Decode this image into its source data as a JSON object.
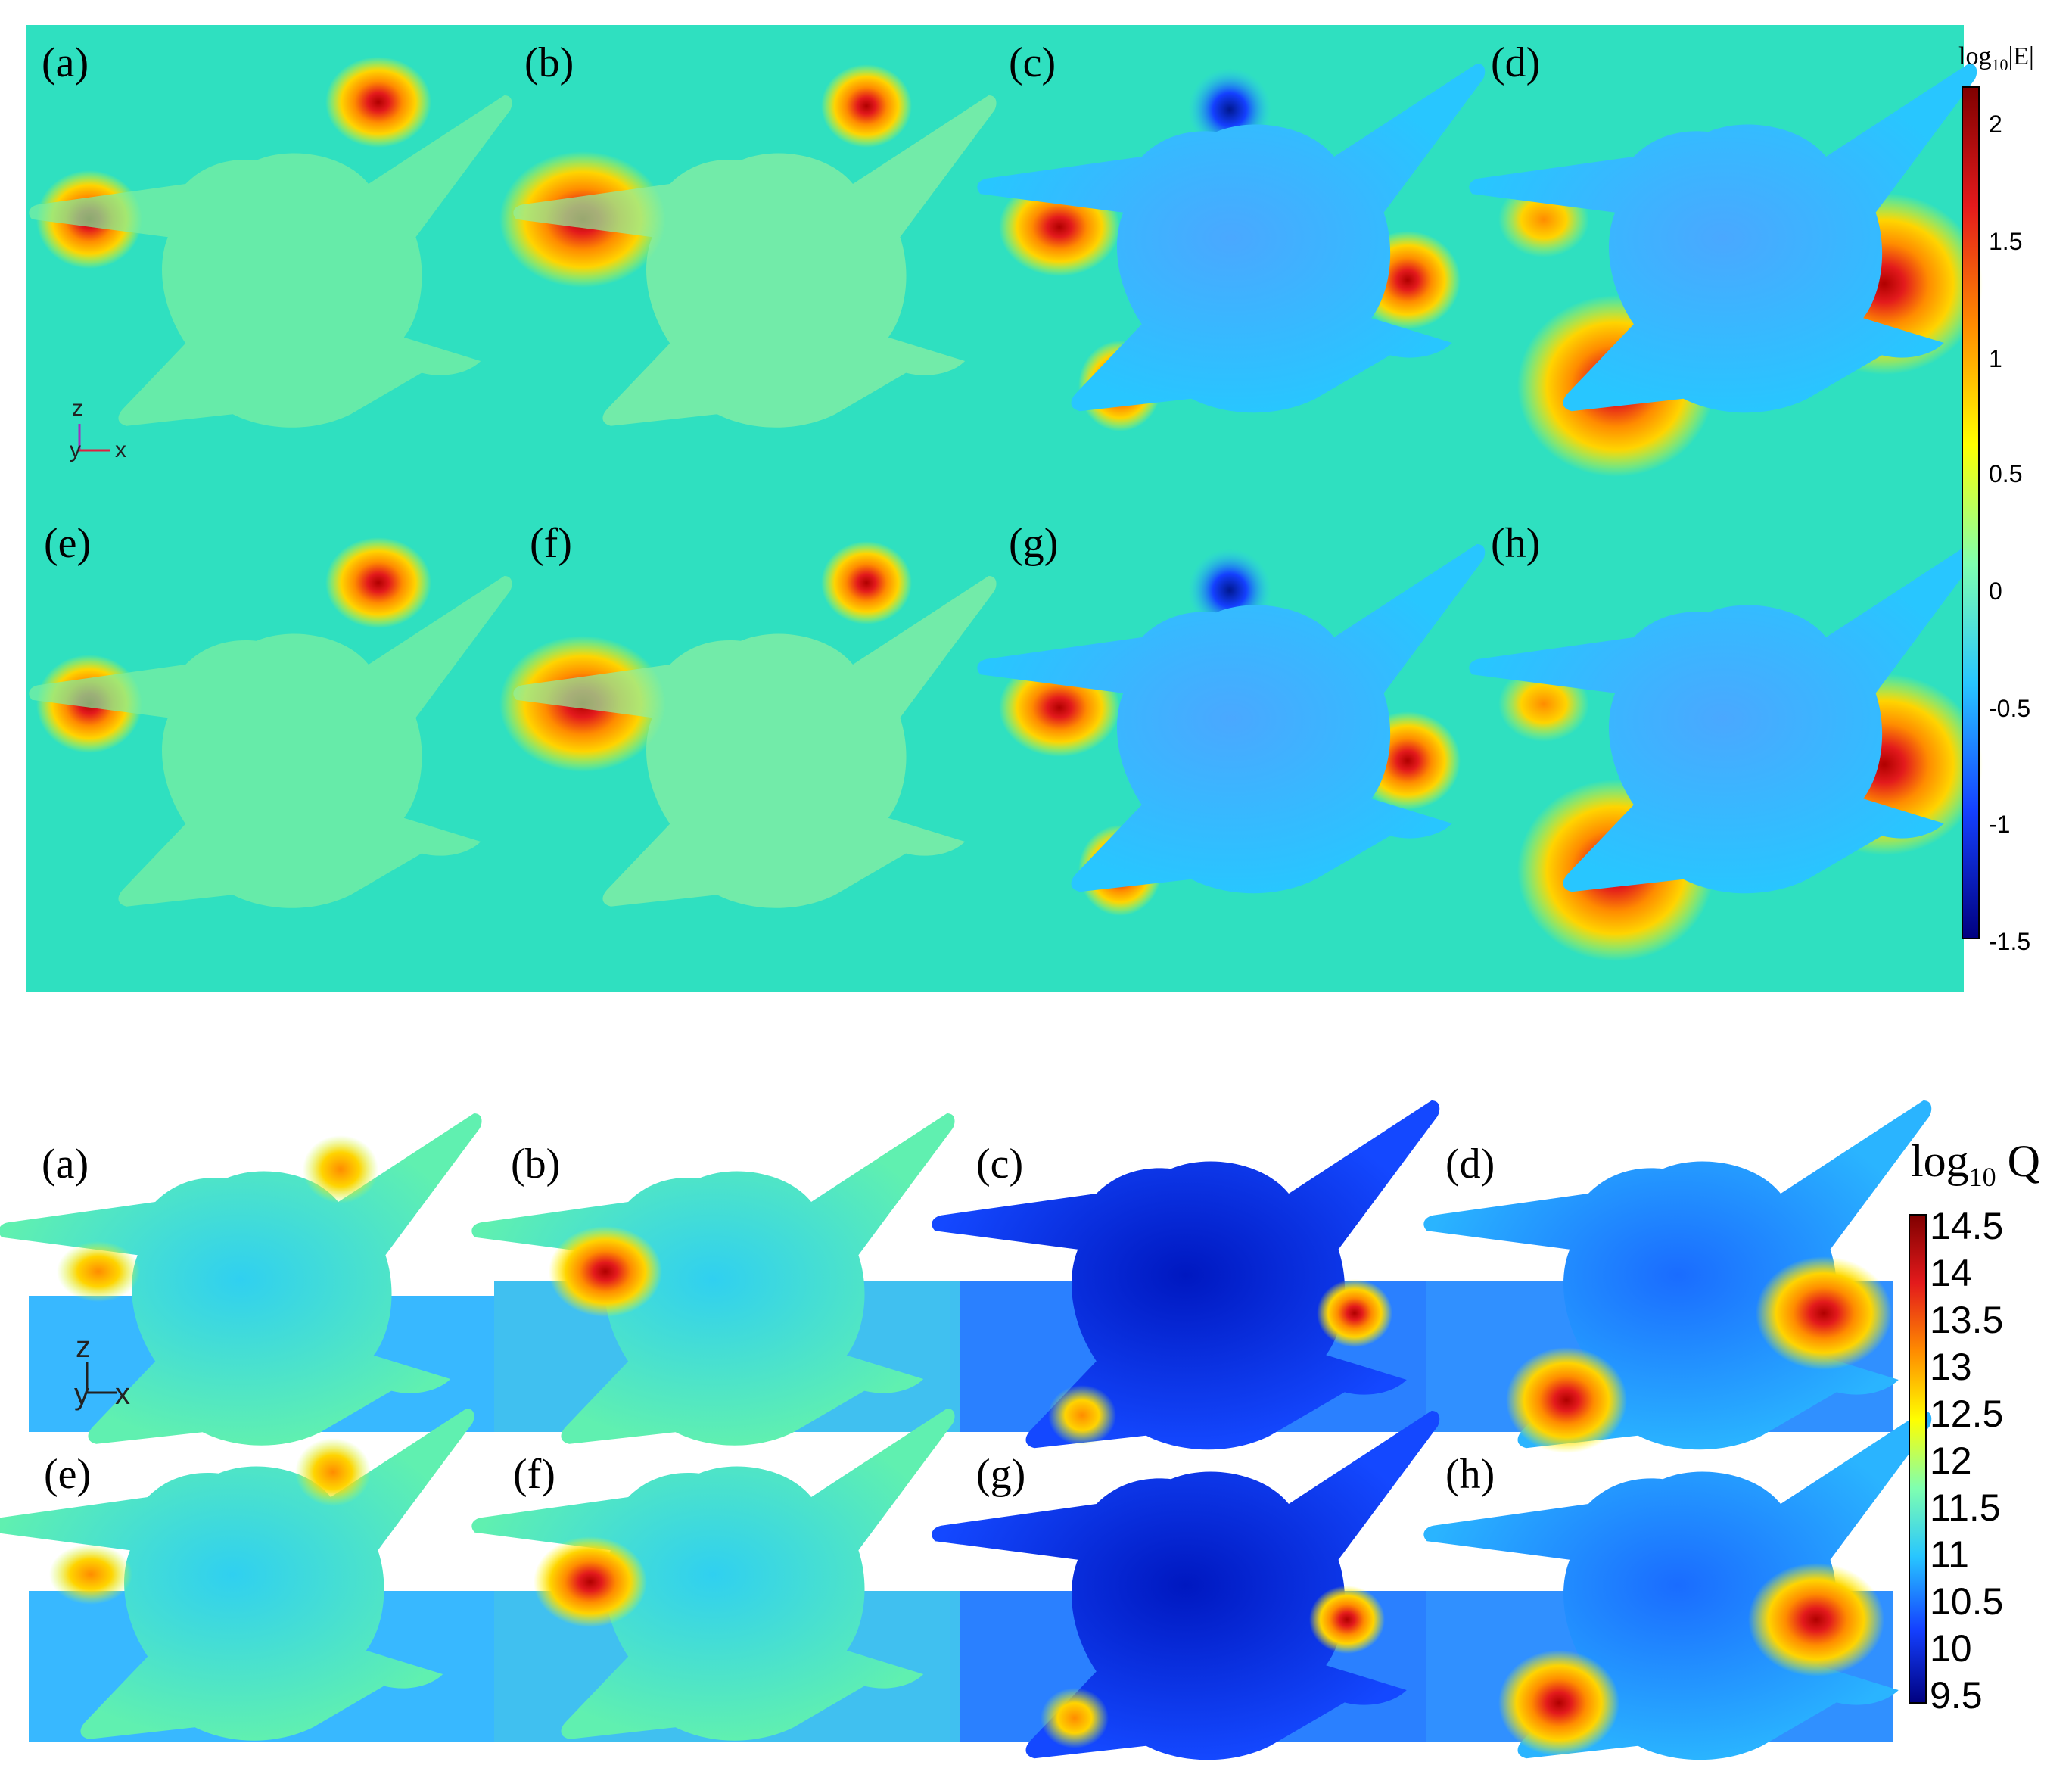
{
  "top_figure": {
    "panel_labels": [
      "(a)",
      "(b)",
      "(c)",
      "(d)",
      "(e)",
      "(f)",
      "(g)",
      "(h)"
    ],
    "colorbar": {
      "title_main": "log",
      "title_sub": "10",
      "title_suffix": "|E|",
      "ticks": [
        "2",
        "1.5",
        "1",
        "0.5",
        "0",
        "-0.5",
        "-1",
        "-1.5"
      ],
      "colors": [
        "#7f0000",
        "#e31a1c",
        "#ff8c00",
        "#ffff00",
        "#7fffb0",
        "#28c6ff",
        "#1440ff",
        "#00007f"
      ]
    },
    "axes": {
      "z": "z",
      "y": "y",
      "x": "x"
    }
  },
  "bottom_figure": {
    "panel_labels": [
      "(a)",
      "(b)",
      "(c)",
      "(d)",
      "(e)",
      "(f)",
      "(g)",
      "(h)"
    ],
    "colorbar": {
      "title_main": "log",
      "title_sub": "10",
      "title_suffix": "Q",
      "ticks": [
        "14.5",
        "14",
        "13.5",
        "13",
        "12.5",
        "12",
        "11.5",
        "11",
        "10.5",
        "10",
        "9.5"
      ],
      "colors": [
        "#7f0000",
        "#e31a1c",
        "#ff8c00",
        "#ffff00",
        "#7fffb0",
        "#28c6ff",
        "#1440ff",
        "#00007f"
      ]
    },
    "axes": {
      "z": "z",
      "y": "y",
      "x": "x"
    }
  },
  "colors": {
    "field_background": "#2fe0c0",
    "hot": "#e31a1c",
    "warm": "#ffb000",
    "cool": "#28a8ff",
    "cold": "#1440d0"
  }
}
